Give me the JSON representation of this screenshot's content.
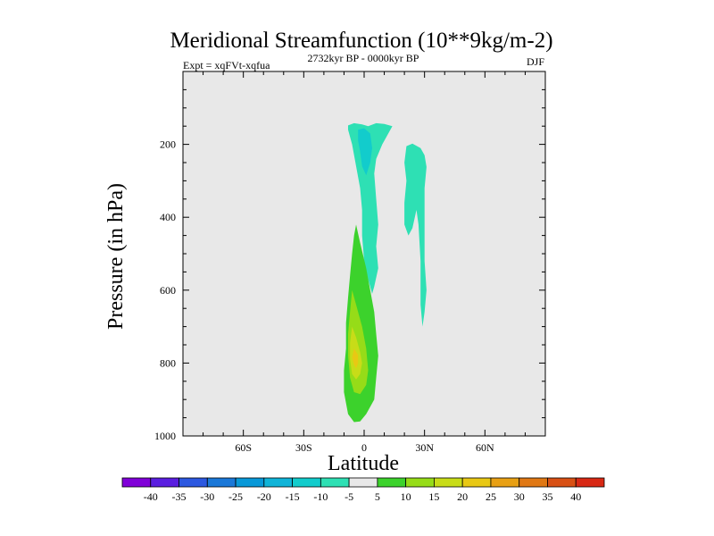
{
  "chart_data": {
    "type": "heatmap",
    "title": "Meridional Streamfunction (10**9kg/m-2)",
    "subtitle_left": "Expt = xqFVt-xqfua",
    "subtitle_center": "2732kyr BP - 0000kyr BP",
    "subtitle_right": "DJF",
    "xlabel": "Latitude",
    "ylabel": "Pressure (in hPa)",
    "xlim": [
      -90,
      90
    ],
    "ylim": [
      1000,
      0
    ],
    "x_ticks": [
      -60,
      -30,
      0,
      30,
      60
    ],
    "x_tick_labels": [
      "60S",
      "30S",
      "0",
      "30N",
      "60N"
    ],
    "y_ticks": [
      200,
      400,
      600,
      800,
      1000
    ],
    "y_tick_labels": [
      "200",
      "400",
      "600",
      "800",
      "1000"
    ],
    "background_color": "#e8e8e8",
    "colorbar": {
      "levels": [
        -40,
        -35,
        -30,
        -25,
        -20,
        -15,
        -10,
        -5,
        5,
        10,
        15,
        20,
        25,
        30,
        35,
        40
      ],
      "labels": [
        "-40",
        "-35",
        "-30",
        "-25",
        "-20",
        "-15",
        "-10",
        "-5",
        "5",
        "10",
        "15",
        "20",
        "25",
        "30",
        "35",
        "40"
      ],
      "colors": [
        "#8000d8",
        "#5a1ee0",
        "#2c58e0",
        "#1a78d8",
        "#0898d8",
        "#10b4d8",
        "#12cccc",
        "#2ee0b4",
        "#e8e8e8",
        "#3cd22c",
        "#96dc18",
        "#c8dc18",
        "#e8c814",
        "#e8a014",
        "#e07814",
        "#d85014",
        "#d82814"
      ]
    },
    "regions": [
      {
        "name": "equatorial-upper-negative",
        "interval": "-10 to -5",
        "color": "#2ee0b4",
        "outline": [
          [
            -8,
            148
          ],
          [
            -5,
            142
          ],
          [
            -1,
            145
          ],
          [
            2,
            150
          ],
          [
            6,
            142
          ],
          [
            10,
            144
          ],
          [
            14,
            150
          ],
          [
            12,
            170
          ],
          [
            9,
            200
          ],
          [
            6,
            240
          ],
          [
            5,
            280
          ],
          [
            6,
            350
          ],
          [
            7,
            420
          ],
          [
            6,
            480
          ],
          [
            7,
            540
          ],
          [
            5,
            590
          ],
          [
            4,
            610
          ],
          [
            2,
            570
          ],
          [
            0,
            520
          ],
          [
            -1,
            450
          ],
          [
            -1,
            380
          ],
          [
            -2,
            320
          ],
          [
            -4,
            260
          ],
          [
            -6,
            200
          ],
          [
            -8,
            160
          ]
        ]
      },
      {
        "name": "equatorial-upper-core",
        "interval": "-15 to -10",
        "color": "#12cccc",
        "outline": [
          [
            -3,
            160
          ],
          [
            0,
            156
          ],
          [
            3,
            170
          ],
          [
            4,
            210
          ],
          [
            3,
            250
          ],
          [
            1,
            285
          ],
          [
            -1,
            260
          ],
          [
            -2,
            220
          ],
          [
            -3,
            190
          ]
        ]
      },
      {
        "name": "north-subtropical-negative",
        "interval": "-10 to -5",
        "color": "#2ee0b4",
        "outline": [
          [
            21,
            205
          ],
          [
            24,
            198
          ],
          [
            28,
            210
          ],
          [
            30,
            230
          ],
          [
            31,
            262
          ],
          [
            30,
            320
          ],
          [
            30,
            420
          ],
          [
            30,
            520
          ],
          [
            31,
            600
          ],
          [
            30,
            660
          ],
          [
            29,
            700
          ],
          [
            28,
            640
          ],
          [
            28,
            520
          ],
          [
            27,
            420
          ],
          [
            26,
            380
          ],
          [
            24,
            430
          ],
          [
            22,
            450
          ],
          [
            20,
            420
          ],
          [
            20,
            360
          ],
          [
            21,
            300
          ],
          [
            20,
            250
          ]
        ]
      },
      {
        "name": "lower-positive-5-10",
        "interval": "5 to 10",
        "color": "#3cd22c",
        "outline": [
          [
            -4,
            420
          ],
          [
            -2,
            470
          ],
          [
            1,
            540
          ],
          [
            3,
            600
          ],
          [
            5,
            660
          ],
          [
            6,
            720
          ],
          [
            7,
            780
          ],
          [
            6,
            840
          ],
          [
            5,
            900
          ],
          [
            1,
            940
          ],
          [
            -2,
            960
          ],
          [
            -5,
            962
          ],
          [
            -8,
            940
          ],
          [
            -10,
            880
          ],
          [
            -10,
            820
          ],
          [
            -9,
            760
          ],
          [
            -9,
            690
          ],
          [
            -8,
            620
          ],
          [
            -7,
            560
          ],
          [
            -6,
            500
          ],
          [
            -5,
            450
          ]
        ]
      },
      {
        "name": "lower-positive-10-15",
        "interval": "10 to 15",
        "color": "#96dc18",
        "outline": [
          [
            -6,
            600
          ],
          [
            -4,
            640
          ],
          [
            -1,
            700
          ],
          [
            1,
            760
          ],
          [
            2,
            820
          ],
          [
            1,
            860
          ],
          [
            -2,
            885
          ],
          [
            -5,
            880
          ],
          [
            -7,
            840
          ],
          [
            -8,
            780
          ],
          [
            -8,
            720
          ],
          [
            -7,
            660
          ]
        ]
      },
      {
        "name": "lower-positive-15-20",
        "interval": "15 to 20",
        "color": "#c8dc18",
        "outline": [
          [
            -6,
            700
          ],
          [
            -4,
            730
          ],
          [
            -2,
            770
          ],
          [
            -1,
            800
          ],
          [
            -2,
            830
          ],
          [
            -4,
            845
          ],
          [
            -6,
            830
          ],
          [
            -7,
            790
          ],
          [
            -7,
            745
          ]
        ]
      },
      {
        "name": "lower-positive-20-25",
        "interval": "20 to 25",
        "color": "#e8c814",
        "outline": [
          [
            -5,
            760
          ],
          [
            -3,
            778
          ],
          [
            -3,
            800
          ],
          [
            -4,
            815
          ],
          [
            -5,
            805
          ],
          [
            -6,
            785
          ]
        ]
      }
    ]
  }
}
